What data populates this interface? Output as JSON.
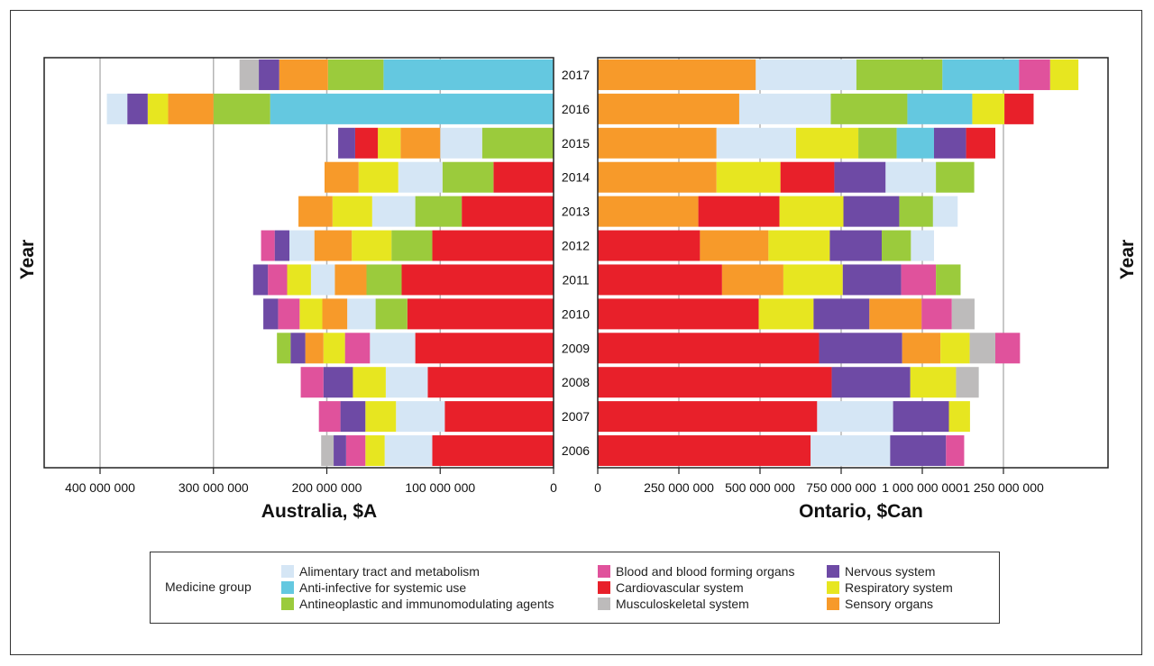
{
  "colors": {
    "Alimentary tract and metabolism": "#d5e6f5",
    "Anti-infective for systemic use": "#64c8e0",
    "Antineoplastic and immunomodulating agents": "#9bcb3c",
    "Blood and blood forming organs": "#e0529c",
    "Cardiovascular system": "#e8202a",
    "Musculoskeletal system": "#bdbbbb",
    "Nervous system": "#6e4aa5",
    "Respiratory system": "#e7e620",
    "Sensory organs": "#f79a2a"
  },
  "legend": {
    "title": "Medicine group",
    "items": [
      "Alimentary tract and metabolism",
      "Anti-infective for systemic use",
      "Antineoplastic and immunomodulating agents",
      "Blood and blood forming organs",
      "Cardiovascular system",
      "Musculoskeletal system",
      "Nervous system",
      "Respiratory system",
      "Sensory organs"
    ]
  },
  "chart_data": [
    {
      "type": "bar",
      "orientation": "horizontal",
      "stacked": true,
      "reversed_x": true,
      "xlabel": "Australia, $A",
      "ylabel": "Year",
      "xlim": [
        0,
        450000000
      ],
      "xticks": [
        0,
        100000000,
        200000000,
        300000000,
        400000000
      ],
      "xtick_labels": [
        "0",
        "100 000 000",
        "200 000 000",
        "300 000 000",
        "400 000 000"
      ],
      "grid": true,
      "rows": [
        {
          "year": "2017",
          "segments": [
            {
              "group": "Anti-infective for systemic use",
              "value": 150000000
            },
            {
              "group": "Antineoplastic and immunomodulating agents",
              "value": 49000000
            },
            {
              "group": "Sensory organs",
              "value": 43000000
            },
            {
              "group": "Nervous system",
              "value": 18000000
            },
            {
              "group": "Musculoskeletal system",
              "value": 17000000
            }
          ]
        },
        {
          "year": "2016",
          "segments": [
            {
              "group": "Anti-infective for systemic use",
              "value": 250000000
            },
            {
              "group": "Antineoplastic and immunomodulating agents",
              "value": 50000000
            },
            {
              "group": "Sensory organs",
              "value": 40000000
            },
            {
              "group": "Respiratory system",
              "value": 18000000
            },
            {
              "group": "Nervous system",
              "value": 18000000
            },
            {
              "group": "Alimentary tract and metabolism",
              "value": 18000000
            }
          ]
        },
        {
          "year": "2015",
          "segments": [
            {
              "group": "Antineoplastic and immunomodulating agents",
              "value": 63000000
            },
            {
              "group": "Alimentary tract and metabolism",
              "value": 37000000
            },
            {
              "group": "Sensory organs",
              "value": 35000000
            },
            {
              "group": "Respiratory system",
              "value": 20000000
            },
            {
              "group": "Cardiovascular system",
              "value": 20000000
            },
            {
              "group": "Nervous system",
              "value": 15000000
            }
          ]
        },
        {
          "year": "2014",
          "segments": [
            {
              "group": "Cardiovascular system",
              "value": 53000000
            },
            {
              "group": "Antineoplastic and immunomodulating agents",
              "value": 45000000
            },
            {
              "group": "Alimentary tract and metabolism",
              "value": 39000000
            },
            {
              "group": "Respiratory system",
              "value": 35000000
            },
            {
              "group": "Sensory organs",
              "value": 30000000
            }
          ]
        },
        {
          "year": "2013",
          "segments": [
            {
              "group": "Cardiovascular system",
              "value": 81000000
            },
            {
              "group": "Antineoplastic and immunomodulating agents",
              "value": 41000000
            },
            {
              "group": "Alimentary tract and metabolism",
              "value": 38000000
            },
            {
              "group": "Respiratory system",
              "value": 35000000
            },
            {
              "group": "Sensory organs",
              "value": 30000000
            }
          ]
        },
        {
          "year": "2012",
          "segments": [
            {
              "group": "Cardiovascular system",
              "value": 107000000
            },
            {
              "group": "Antineoplastic and immunomodulating agents",
              "value": 36000000
            },
            {
              "group": "Respiratory system",
              "value": 35000000
            },
            {
              "group": "Sensory organs",
              "value": 33000000
            },
            {
              "group": "Alimentary tract and metabolism",
              "value": 22000000
            },
            {
              "group": "Nervous system",
              "value": 13000000
            },
            {
              "group": "Blood and blood forming organs",
              "value": 12000000
            }
          ]
        },
        {
          "year": "2011",
          "segments": [
            {
              "group": "Cardiovascular system",
              "value": 134000000
            },
            {
              "group": "Antineoplastic and immunomodulating agents",
              "value": 31000000
            },
            {
              "group": "Sensory organs",
              "value": 28000000
            },
            {
              "group": "Alimentary tract and metabolism",
              "value": 21000000
            },
            {
              "group": "Respiratory system",
              "value": 21000000
            },
            {
              "group": "Blood and blood forming organs",
              "value": 17000000
            },
            {
              "group": "Nervous system",
              "value": 13000000
            }
          ]
        },
        {
          "year": "2010",
          "segments": [
            {
              "group": "Cardiovascular system",
              "value": 129000000
            },
            {
              "group": "Antineoplastic and immunomodulating agents",
              "value": 28000000
            },
            {
              "group": "Alimentary tract and metabolism",
              "value": 25000000
            },
            {
              "group": "Sensory organs",
              "value": 22000000
            },
            {
              "group": "Respiratory system",
              "value": 20000000
            },
            {
              "group": "Blood and blood forming organs",
              "value": 19000000
            },
            {
              "group": "Nervous system",
              "value": 13000000
            }
          ]
        },
        {
          "year": "2009",
          "segments": [
            {
              "group": "Cardiovascular system",
              "value": 122000000
            },
            {
              "group": "Alimentary tract and metabolism",
              "value": 40000000
            },
            {
              "group": "Blood and blood forming organs",
              "value": 22000000
            },
            {
              "group": "Respiratory system",
              "value": 19000000
            },
            {
              "group": "Sensory organs",
              "value": 16000000
            },
            {
              "group": "Nervous system",
              "value": 13000000
            },
            {
              "group": "Antineoplastic and immunomodulating agents",
              "value": 12000000
            }
          ]
        },
        {
          "year": "2008",
          "segments": [
            {
              "group": "Cardiovascular system",
              "value": 111000000
            },
            {
              "group": "Alimentary tract and metabolism",
              "value": 37000000
            },
            {
              "group": "Respiratory system",
              "value": 29000000
            },
            {
              "group": "Nervous system",
              "value": 26000000
            },
            {
              "group": "Blood and blood forming organs",
              "value": 20000000
            }
          ]
        },
        {
          "year": "2007",
          "segments": [
            {
              "group": "Cardiovascular system",
              "value": 96000000
            },
            {
              "group": "Alimentary tract and metabolism",
              "value": 43000000
            },
            {
              "group": "Respiratory system",
              "value": 27000000
            },
            {
              "group": "Nervous system",
              "value": 22000000
            },
            {
              "group": "Blood and blood forming organs",
              "value": 19000000
            }
          ]
        },
        {
          "year": "2006",
          "segments": [
            {
              "group": "Cardiovascular system",
              "value": 107000000
            },
            {
              "group": "Alimentary tract and metabolism",
              "value": 42000000
            },
            {
              "group": "Respiratory system",
              "value": 17000000
            },
            {
              "group": "Blood and blood forming organs",
              "value": 17000000
            },
            {
              "group": "Nervous system",
              "value": 11000000
            },
            {
              "group": "Musculoskeletal system",
              "value": 11000000
            }
          ]
        }
      ]
    },
    {
      "type": "bar",
      "orientation": "horizontal",
      "stacked": true,
      "xlabel": "Ontario, $Can",
      "ylabel": "Year",
      "xlim": [
        0,
        1550000000
      ],
      "xticks": [
        0,
        250000000,
        500000000,
        750000000,
        1000000000,
        1250000000
      ],
      "xtick_labels": [
        "0",
        "250 000 000",
        "500 000 000",
        "750 000 000",
        "1 000 000 000",
        "1 250 000 000"
      ],
      "grid": true,
      "rows": [
        {
          "year": "2017",
          "segments": [
            {
              "group": "Sensory organs",
              "value": 487000000
            },
            {
              "group": "Alimentary tract and metabolism",
              "value": 310000000
            },
            {
              "group": "Antineoplastic and immunomodulating agents",
              "value": 265000000
            },
            {
              "group": "Anti-infective for systemic use",
              "value": 236000000
            },
            {
              "group": "Blood and blood forming organs",
              "value": 96000000
            },
            {
              "group": "Respiratory system",
              "value": 87000000
            }
          ]
        },
        {
          "year": "2016",
          "segments": [
            {
              "group": "Sensory organs",
              "value": 436000000
            },
            {
              "group": "Alimentary tract and metabolism",
              "value": 282000000
            },
            {
              "group": "Antineoplastic and immunomodulating agents",
              "value": 236000000
            },
            {
              "group": "Anti-infective for systemic use",
              "value": 200000000
            },
            {
              "group": "Respiratory system",
              "value": 99000000
            },
            {
              "group": "Cardiovascular system",
              "value": 90000000
            }
          ]
        },
        {
          "year": "2015",
          "segments": [
            {
              "group": "Sensory organs",
              "value": 366000000
            },
            {
              "group": "Alimentary tract and metabolism",
              "value": 245000000
            },
            {
              "group": "Respiratory system",
              "value": 192000000
            },
            {
              "group": "Antineoplastic and immunomodulating agents",
              "value": 118000000
            },
            {
              "group": "Anti-infective for systemic use",
              "value": 115000000
            },
            {
              "group": "Nervous system",
              "value": 99000000
            },
            {
              "group": "Cardiovascular system",
              "value": 90000000
            }
          ]
        },
        {
          "year": "2014",
          "segments": [
            {
              "group": "Sensory organs",
              "value": 366000000
            },
            {
              "group": "Respiratory system",
              "value": 197000000
            },
            {
              "group": "Cardiovascular system",
              "value": 166000000
            },
            {
              "group": "Nervous system",
              "value": 158000000
            },
            {
              "group": "Alimentary tract and metabolism",
              "value": 155000000
            },
            {
              "group": "Antineoplastic and immunomodulating agents",
              "value": 118000000
            }
          ]
        },
        {
          "year": "2013",
          "segments": [
            {
              "group": "Sensory organs",
              "value": 310000000
            },
            {
              "group": "Cardiovascular system",
              "value": 250000000
            },
            {
              "group": "Respiratory system",
              "value": 197000000
            },
            {
              "group": "Nervous system",
              "value": 172000000
            },
            {
              "group": "Antineoplastic and immunomodulating agents",
              "value": 104000000
            },
            {
              "group": "Alimentary tract and metabolism",
              "value": 76000000
            }
          ]
        },
        {
          "year": "2012",
          "segments": [
            {
              "group": "Cardiovascular system",
              "value": 315000000
            },
            {
              "group": "Sensory organs",
              "value": 211000000
            },
            {
              "group": "Respiratory system",
              "value": 189000000
            },
            {
              "group": "Nervous system",
              "value": 160000000
            },
            {
              "group": "Antineoplastic and immunomodulating agents",
              "value": 90000000
            },
            {
              "group": "Alimentary tract and metabolism",
              "value": 71000000
            }
          ]
        },
        {
          "year": "2011",
          "segments": [
            {
              "group": "Cardiovascular system",
              "value": 383000000
            },
            {
              "group": "Sensory organs",
              "value": 189000000
            },
            {
              "group": "Respiratory system",
              "value": 183000000
            },
            {
              "group": "Nervous system",
              "value": 180000000
            },
            {
              "group": "Blood and blood forming organs",
              "value": 107000000
            },
            {
              "group": "Antineoplastic and immunomodulating agents",
              "value": 76000000
            }
          ]
        },
        {
          "year": "2010",
          "segments": [
            {
              "group": "Cardiovascular system",
              "value": 496000000
            },
            {
              "group": "Respiratory system",
              "value": 169000000
            },
            {
              "group": "Nervous system",
              "value": 172000000
            },
            {
              "group": "Sensory organs",
              "value": 161000000
            },
            {
              "group": "Blood and blood forming organs",
              "value": 93000000
            },
            {
              "group": "Musculoskeletal system",
              "value": 70000000
            }
          ]
        },
        {
          "year": "2009",
          "segments": [
            {
              "group": "Cardiovascular system",
              "value": 682000000
            },
            {
              "group": "Nervous system",
              "value": 256000000
            },
            {
              "group": "Sensory organs",
              "value": 118000000
            },
            {
              "group": "Respiratory system",
              "value": 90000000
            },
            {
              "group": "Musculoskeletal system",
              "value": 79000000
            },
            {
              "group": "Blood and blood forming organs",
              "value": 76000000
            }
          ]
        },
        {
          "year": "2008",
          "segments": [
            {
              "group": "Cardiovascular system",
              "value": 721000000
            },
            {
              "group": "Nervous system",
              "value": 242000000
            },
            {
              "group": "Respiratory system",
              "value": 141000000
            },
            {
              "group": "Musculoskeletal system",
              "value": 70000000
            }
          ]
        },
        {
          "year": "2007",
          "segments": [
            {
              "group": "Cardiovascular system",
              "value": 676000000
            },
            {
              "group": "Alimentary tract and metabolism",
              "value": 234000000
            },
            {
              "group": "Nervous system",
              "value": 172000000
            },
            {
              "group": "Respiratory system",
              "value": 65000000
            }
          ]
        },
        {
          "year": "2006",
          "segments": [
            {
              "group": "Cardiovascular system",
              "value": 656000000
            },
            {
              "group": "Alimentary tract and metabolism",
              "value": 245000000
            },
            {
              "group": "Nervous system",
              "value": 172000000
            },
            {
              "group": "Blood and blood forming organs",
              "value": 56000000
            }
          ]
        }
      ]
    }
  ]
}
